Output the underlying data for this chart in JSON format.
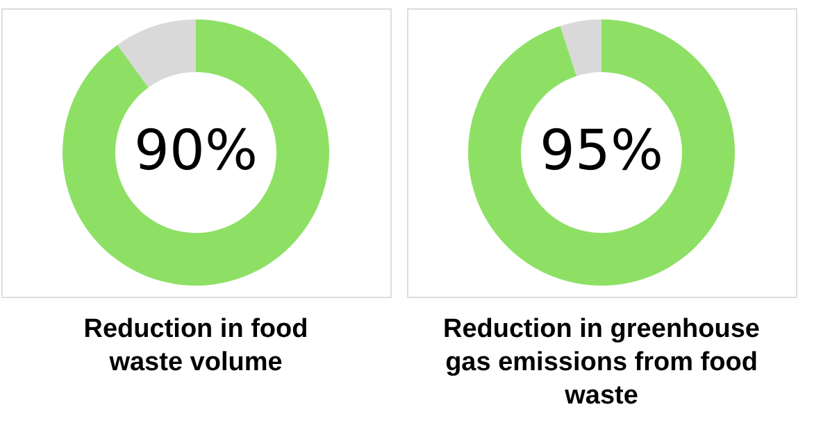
{
  "chart_data": [
    {
      "type": "donut",
      "title": "Reduction in food waste volume",
      "categories": [
        null,
        null
      ],
      "values": [
        90,
        10
      ],
      "colors": [
        "#8ee065",
        "#d9d9d9"
      ],
      "value_labels": [
        "90%",
        null
      ]
    },
    {
      "type": "donut",
      "title": "Reduction in greenhouse gas emissions from food waste",
      "categories": [
        null,
        null
      ],
      "values": [
        95,
        5
      ],
      "colors": [
        "#8ee065",
        "#d9d9d9"
      ],
      "value_labels": [
        "95%",
        null
      ]
    }
  ]
}
